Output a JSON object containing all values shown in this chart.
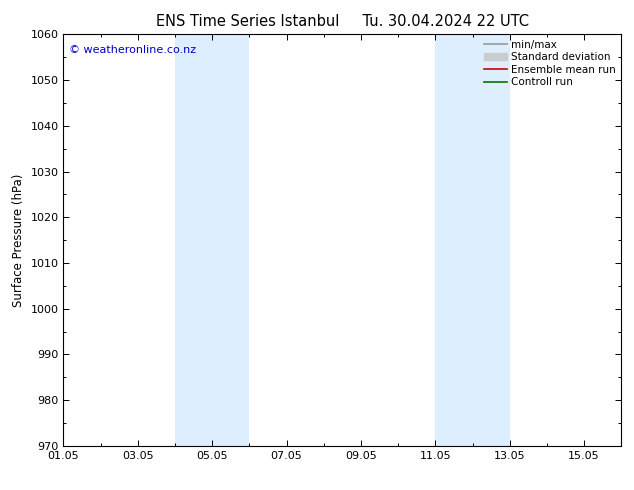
{
  "title_left": "ENS Time Series Istanbul",
  "title_right": "Tu. 30.04.2024 22 UTC",
  "ylabel": "Surface Pressure (hPa)",
  "ylim": [
    970,
    1060
  ],
  "yticks": [
    970,
    980,
    990,
    1000,
    1010,
    1020,
    1030,
    1040,
    1050,
    1060
  ],
  "xlim": [
    0,
    15
  ],
  "xtick_labels": [
    "01.05",
    "03.05",
    "05.05",
    "07.05",
    "09.05",
    "11.05",
    "13.05",
    "15.05"
  ],
  "xtick_positions": [
    0,
    2,
    4,
    6,
    8,
    10,
    12,
    14
  ],
  "shade_bands": [
    {
      "x_start": 3.0,
      "x_end": 5.0,
      "color": "#ddeeff"
    },
    {
      "x_start": 10.0,
      "x_end": 12.0,
      "color": "#ddeeff"
    }
  ],
  "watermark": "© weatheronline.co.nz",
  "watermark_color": "#0000cc",
  "legend_items": [
    {
      "label": "min/max",
      "color": "#999999",
      "lw": 1.2,
      "type": "line"
    },
    {
      "label": "Standard deviation",
      "color": "#cccccc",
      "lw": 8,
      "type": "band"
    },
    {
      "label": "Ensemble mean run",
      "color": "#cc0000",
      "lw": 1.2,
      "type": "line"
    },
    {
      "label": "Controll run",
      "color": "#007700",
      "lw": 1.2,
      "type": "line"
    }
  ],
  "bg_color": "#ffffff",
  "plot_bg_color": "#ffffff",
  "tick_color": "#000000",
  "spine_color": "#000000",
  "title_fontsize": 10.5,
  "axis_label_fontsize": 8.5,
  "tick_fontsize": 8,
  "legend_fontsize": 7.5,
  "watermark_fontsize": 8
}
